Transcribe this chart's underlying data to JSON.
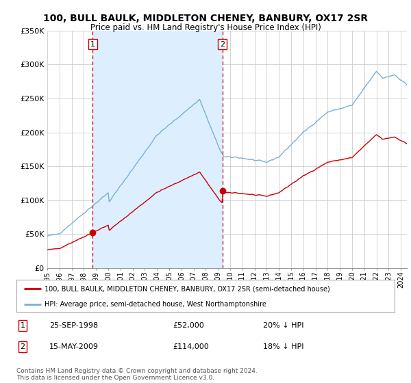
{
  "title": "100, BULL BAULK, MIDDLETON CHENEY, BANBURY, OX17 2SR",
  "subtitle": "Price paid vs. HM Land Registry's House Price Index (HPI)",
  "title_fontsize": 10,
  "subtitle_fontsize": 8.5,
  "background_color": "#ffffff",
  "grid_color": "#cccccc",
  "sale1_t": 1998.73,
  "sale1_price": 52000,
  "sale2_t": 2009.37,
  "sale2_price": 114000,
  "red_line_color": "#cc0000",
  "blue_line_color": "#7ab0d4",
  "shade_color": "#ddeeff",
  "vline_color": "#cc0000",
  "marker_color": "#cc0000",
  "ylim": [
    0,
    350000
  ],
  "yticks": [
    0,
    50000,
    100000,
    150000,
    200000,
    250000,
    300000,
    350000
  ],
  "legend_label_red": "100, BULL BAULK, MIDDLETON CHENEY, BANBURY, OX17 2SR (semi-detached house)",
  "legend_label_blue": "HPI: Average price, semi-detached house, West Northamptonshire",
  "footer": "Contains HM Land Registry data © Crown copyright and database right 2024.\nThis data is licensed under the Open Government Licence v3.0.",
  "table_rows": [
    {
      "num": "1",
      "date": "25-SEP-1998",
      "price": "£52,000",
      "hpi": "20% ↓ HPI"
    },
    {
      "num": "2",
      "date": "15-MAY-2009",
      "price": "£114,000",
      "hpi": "18% ↓ HPI"
    }
  ]
}
